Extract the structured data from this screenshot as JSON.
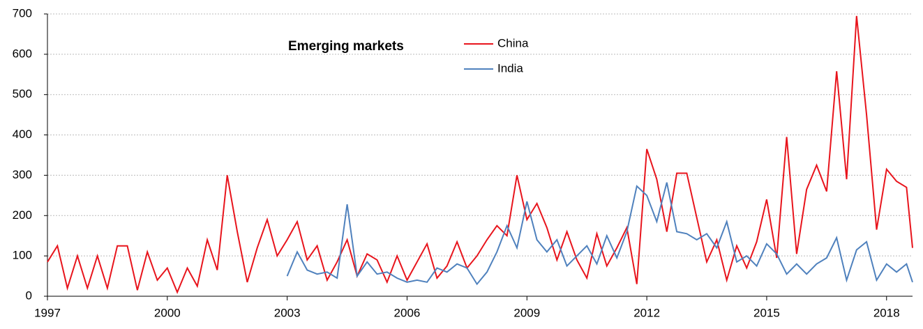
{
  "chart_data": {
    "type": "line",
    "legend_title": "Emerging markets",
    "x": [
      1997.0,
      1997.25,
      1997.5,
      1997.75,
      1998.0,
      1998.25,
      1998.5,
      1998.75,
      1999.0,
      1999.25,
      1999.5,
      1999.75,
      2000.0,
      2000.25,
      2000.5,
      2000.75,
      2001.0,
      2001.25,
      2001.5,
      2001.75,
      2002.0,
      2002.25,
      2002.5,
      2002.75,
      2003.0,
      2003.25,
      2003.5,
      2003.75,
      2004.0,
      2004.25,
      2004.5,
      2004.75,
      2005.0,
      2005.25,
      2005.5,
      2005.75,
      2006.0,
      2006.25,
      2006.5,
      2006.75,
      2007.0,
      2007.25,
      2007.5,
      2007.75,
      2008.0,
      2008.25,
      2008.5,
      2008.75,
      2009.0,
      2009.25,
      2009.5,
      2009.75,
      2010.0,
      2010.25,
      2010.5,
      2010.75,
      2011.0,
      2011.25,
      2011.5,
      2011.75,
      2012.0,
      2012.25,
      2012.5,
      2012.75,
      2013.0,
      2013.25,
      2013.5,
      2013.75,
      2014.0,
      2014.25,
      2014.5,
      2014.75,
      2015.0,
      2015.25,
      2015.5,
      2015.75,
      2016.0,
      2016.25,
      2016.5,
      2016.75,
      2017.0,
      2017.25,
      2017.5,
      2017.75,
      2018.0,
      2018.25,
      2018.5,
      2018.65
    ],
    "series": [
      {
        "name": "China",
        "color": "#e8141c",
        "values": [
          85,
          125,
          20,
          100,
          20,
          100,
          20,
          125,
          125,
          15,
          110,
          40,
          70,
          10,
          70,
          25,
          140,
          65,
          300,
          160,
          35,
          120,
          190,
          100,
          140,
          185,
          90,
          125,
          40,
          85,
          140,
          50,
          105,
          90,
          35,
          100,
          40,
          85,
          130,
          45,
          75,
          135,
          70,
          100,
          140,
          175,
          150,
          300,
          190,
          230,
          170,
          90,
          160,
          90,
          45,
          155,
          75,
          120,
          170,
          30,
          365,
          290,
          160,
          305,
          305,
          195,
          85,
          140,
          40,
          125,
          70,
          135,
          240,
          95,
          395,
          105,
          265,
          325,
          260,
          558,
          290,
          695,
          450,
          165,
          315,
          285,
          270,
          120
        ]
      },
      {
        "name": "India",
        "color": "#4f81bd",
        "values": [
          null,
          null,
          null,
          null,
          null,
          null,
          null,
          null,
          null,
          null,
          null,
          null,
          null,
          null,
          null,
          null,
          null,
          null,
          null,
          null,
          null,
          null,
          null,
          null,
          50,
          110,
          65,
          55,
          60,
          45,
          228,
          50,
          85,
          55,
          60,
          45,
          35,
          40,
          35,
          70,
          60,
          80,
          70,
          30,
          60,
          110,
          175,
          120,
          235,
          140,
          110,
          140,
          75,
          100,
          125,
          80,
          150,
          95,
          160,
          273,
          250,
          185,
          282,
          160,
          155,
          140,
          155,
          120,
          185,
          85,
          100,
          75,
          130,
          105,
          55,
          80,
          55,
          80,
          95,
          145,
          40,
          115,
          135,
          40,
          80,
          60,
          80,
          35
        ]
      }
    ],
    "xlim": [
      1997,
      2018.65
    ],
    "xticks": [
      1997,
      2000,
      2003,
      2006,
      2009,
      2012,
      2015,
      2018
    ],
    "ylim": [
      0,
      700
    ],
    "yticks": [
      0,
      100,
      200,
      300,
      400,
      500,
      600,
      700
    ],
    "grid": true
  }
}
